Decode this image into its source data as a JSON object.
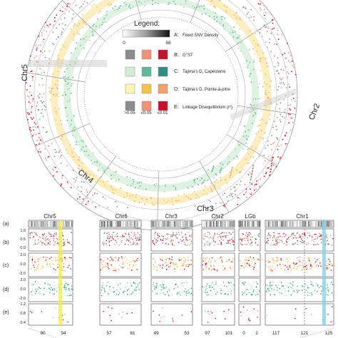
{
  "legend": {
    "title": "Legend:",
    "scale_min": "0",
    "scale_max": "88",
    "threshold_labels": [
      ">0.05",
      "≤0.05",
      "≤0.01"
    ],
    "tracks": [
      {
        "letter": "A:",
        "text": "Fixed SNV Density"
      },
      {
        "letter": "B:",
        "text": "G''ST"
      },
      {
        "letter": "C:",
        "text": "Tajima's D, Capesterre"
      },
      {
        "letter": "D:",
        "text": "Tajima's D, Pointe-à-pitre"
      },
      {
        "letter": "E:",
        "text": "Linkage Disequilibrium (r²)"
      }
    ]
  },
  "circos": {
    "chromosomes": [
      "Chr5",
      "Chr2",
      "Chr4",
      "Chr3"
    ]
  },
  "panels": {
    "row_labels": [
      "(a)",
      "(b)",
      "(c)",
      "(d)",
      "(e)"
    ],
    "y_ticks": {
      "b": [
        "1.0",
        "0.5",
        "0.0"
      ],
      "c": [
        "2.0",
        "0.0",
        "-2.0"
      ],
      "d": [
        "2.0",
        "0.0",
        "-2.0"
      ],
      "e": [
        "1.2",
        "0.8",
        "0.4"
      ]
    },
    "columns": [
      {
        "title": "Chr5",
        "ticks": [
          "90",
          "94"
        ]
      },
      {
        "title": "Chr6",
        "ticks": [
          "57",
          "61"
        ]
      },
      {
        "title": "Chr3",
        "ticks": [
          "49",
          "53"
        ]
      },
      {
        "title": "Chr2",
        "ticks": [
          "97",
          "101"
        ]
      },
      {
        "title": "LGb",
        "ticks": [
          "0",
          "2"
        ]
      },
      {
        "title": "Chr1",
        "ticks": [
          "117",
          "121",
          "125"
        ]
      }
    ]
  },
  "colors": {
    "gray": "#8c8c8c",
    "red": "#c8102e",
    "salmon": "#f0917a",
    "green_light": "#d4ecd4",
    "green": "#5fb89b",
    "yellow_light": "#fbf2b5",
    "yellow": "#f3c64b",
    "orange": "#f0a167",
    "highlight_yellow": "#f2e85a",
    "highlight_cyan": "#7fd0e0"
  }
}
